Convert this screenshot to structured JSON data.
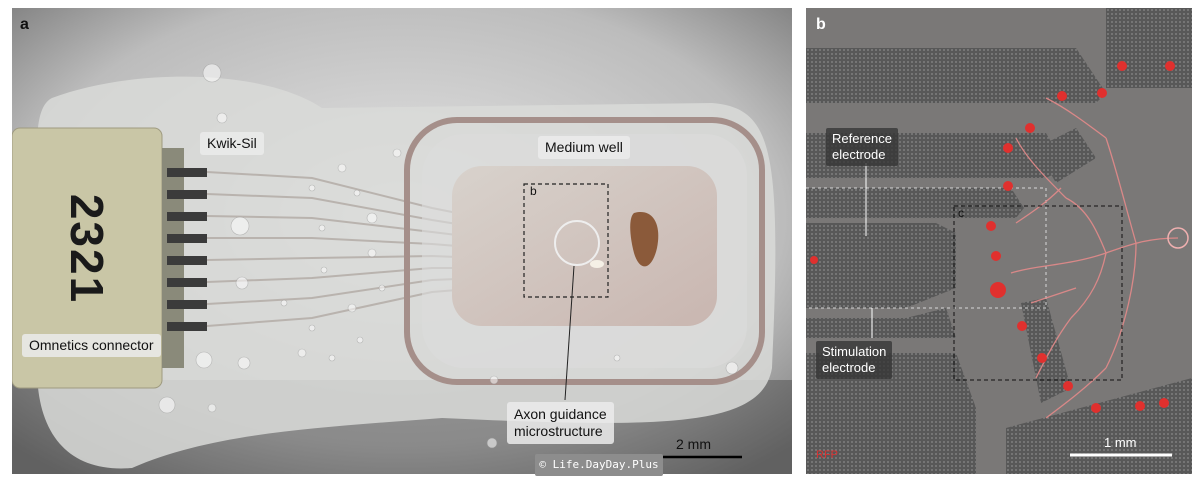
{
  "panel_a": {
    "letter": "a",
    "labels": {
      "kwik_sil": "Kwik-Sil",
      "medium_well": "Medium well",
      "inset_ref": "b",
      "omnetics": "Omnetics connector",
      "axon_line1": "Axon guidance",
      "axon_line2": "microstructure"
    },
    "connector_number": "2321",
    "scale_bar_label": "2 mm"
  },
  "panel_b": {
    "letter": "b",
    "labels": {
      "reference_line1": "Reference",
      "reference_line2": "electrode",
      "inset_ref": "c",
      "stimulation_line1": "Stimulation",
      "stimulation_line2": "electrode",
      "channel": "RFP"
    },
    "scale_bar_label": "1 mm"
  },
  "watermark": "© Life.DayDay.Plus"
}
